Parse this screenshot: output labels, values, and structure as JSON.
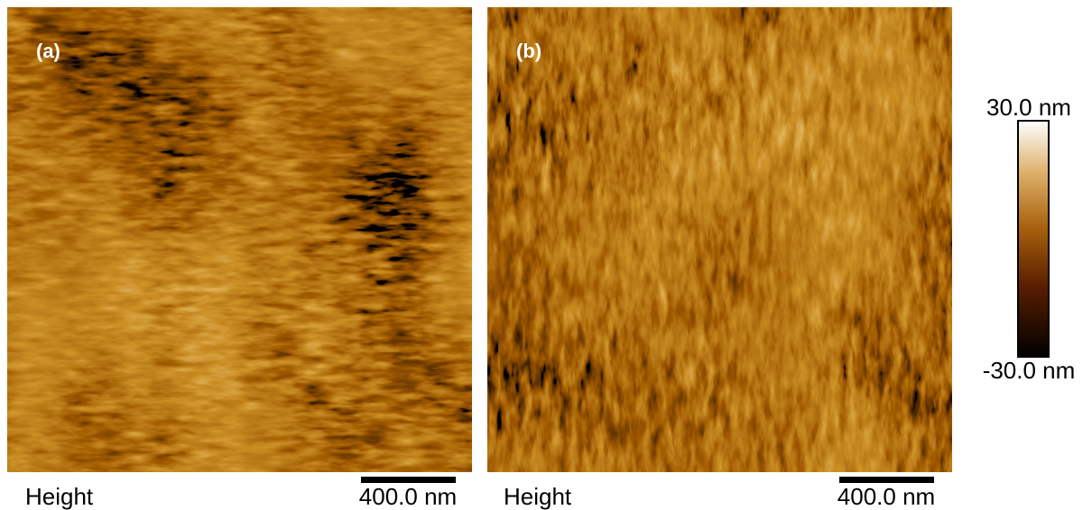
{
  "panels": [
    {
      "label": "(a)",
      "caption": "Height",
      "scale_bar": "400.0 nm"
    },
    {
      "label": "(b)",
      "caption": "Height",
      "scale_bar": "400.0 nm"
    }
  ],
  "colorbar": {
    "max_label": "30.0 nm",
    "min_label": "-30.0 nm"
  }
}
